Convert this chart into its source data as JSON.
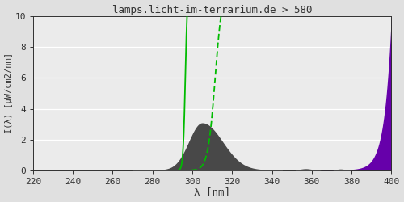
{
  "title": "lamps.licht-im-terrarium.de > 580",
  "xlabel": "λ [nm]",
  "ylabel": "I(λ) [μW/cm2/nm]",
  "xlim": [
    220,
    400
  ],
  "ylim": [
    0,
    10
  ],
  "xticks": [
    220,
    240,
    260,
    280,
    300,
    320,
    340,
    360,
    380,
    400
  ],
  "yticks": [
    0,
    2,
    4,
    6,
    8,
    10
  ],
  "bg_color": "#e0e0e0",
  "plot_bg_color": "#ebebeb",
  "title_color": "#303030",
  "axis_color": "#303030",
  "tick_color": "#303030",
  "grid_color": "#ffffff",
  "spectrum_fill_color": "#484848",
  "green_line_color": "#00bb00",
  "purple_fill_color": "#6600aa"
}
